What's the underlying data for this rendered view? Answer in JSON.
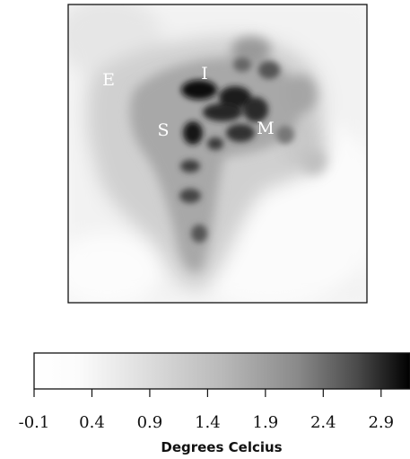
{
  "chart_data": {
    "type": "heatmap",
    "title": "",
    "colorbar": {
      "label": "Degrees Celcius",
      "range": [
        -0.1,
        3.15
      ],
      "ticks": [
        -0.1,
        0.4,
        0.9,
        1.4,
        1.9,
        2.4,
        2.9
      ],
      "tick_labels": [
        "-0.1",
        "0.4",
        "0.9",
        "1.4",
        "1.9",
        "2.4",
        "2.9"
      ],
      "colormap": [
        "#ffffff",
        "#000000"
      ],
      "placement": "bottom"
    },
    "region_labels": [
      {
        "name": "region-e",
        "text": "E"
      },
      {
        "name": "region-i",
        "text": "I"
      },
      {
        "name": "region-s",
        "text": "S"
      },
      {
        "name": "region-m",
        "text": "M"
      }
    ],
    "grid": false
  }
}
